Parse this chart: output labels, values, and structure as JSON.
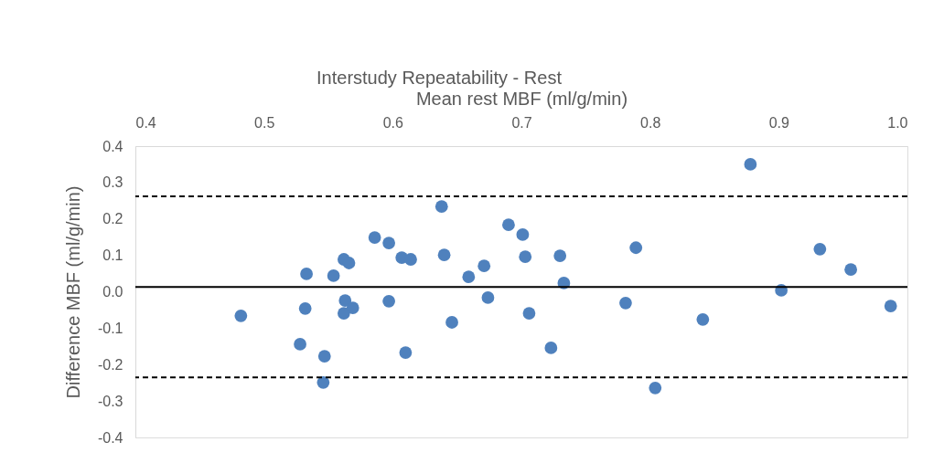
{
  "chart_data": {
    "type": "scatter",
    "title": "Interstudy Repeatability - Rest",
    "xlabel": "Mean rest MBF (ml/g/min)",
    "ylabel": "Difference MBF (ml/g/min)",
    "x": [
      0.482,
      0.528,
      0.533,
      0.532,
      0.547,
      0.546,
      0.554,
      0.562,
      0.566,
      0.563,
      0.562,
      0.569,
      0.586,
      0.597,
      0.597,
      0.607,
      0.614,
      0.61,
      0.638,
      0.64,
      0.646,
      0.659,
      0.671,
      0.674,
      0.69,
      0.701,
      0.703,
      0.706,
      0.723,
      0.73,
      0.733,
      0.781,
      0.789,
      0.804,
      0.841,
      0.878,
      0.902,
      0.932,
      0.956,
      0.987
    ],
    "series": [
      {
        "color": "#4f81bd",
        "values": [
          -0.066,
          -0.144,
          0.049,
          -0.046,
          -0.177,
          -0.249,
          0.044,
          0.089,
          0.079,
          -0.024,
          -0.059,
          -0.044,
          0.149,
          0.134,
          -0.026,
          0.094,
          0.089,
          -0.167,
          0.234,
          0.101,
          -0.084,
          0.041,
          0.071,
          -0.016,
          0.184,
          0.157,
          0.096,
          -0.059,
          -0.154,
          0.099,
          0.024,
          -0.031,
          0.121,
          -0.264,
          -0.076,
          0.35,
          0.004,
          0.117,
          0.061,
          -0.039
        ]
      }
    ],
    "xlim": [
      0.4,
      1.0
    ],
    "xticks": [
      0.4,
      0.5,
      0.6,
      0.7,
      0.8,
      0.9,
      {
        "value": 1.0,
        "label": "1.0"
      }
    ],
    "ylim": [
      -0.4,
      0.4
    ],
    "yticks": [
      -0.4,
      -0.3,
      -0.2,
      -0.1,
      {
        "value": 0.0,
        "label": "0.0"
      },
      0.1,
      0.2,
      0.3,
      0.4
    ],
    "ref_lines": [
      {
        "axis": "y",
        "value": 0.262,
        "color": "#000000",
        "line_style": "dashed"
      },
      {
        "axis": "y",
        "value": 0.013,
        "color": "#000000",
        "line_style": "solid"
      },
      {
        "axis": "y",
        "value": -0.235,
        "color": "#000000",
        "line_style": "dashed"
      }
    ],
    "marker": "circle",
    "grid": false
  }
}
